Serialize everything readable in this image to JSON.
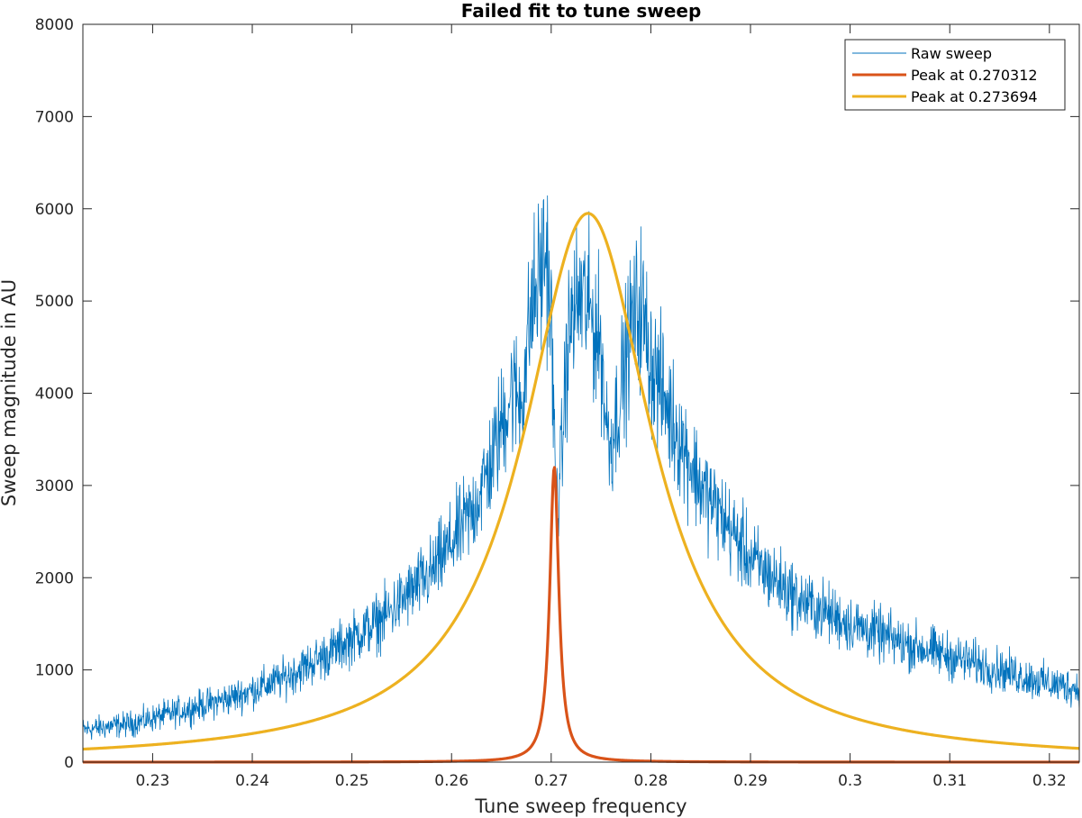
{
  "chart_data": {
    "type": "line",
    "title": "Failed fit to tune sweep",
    "xlabel": "Tune sweep frequency",
    "ylabel": "Sweep magnitude in AU",
    "xlim": [
      0.223,
      0.323
    ],
    "ylim": [
      0,
      8000
    ],
    "xticks": [
      0.23,
      0.24,
      0.25,
      0.26,
      0.27,
      0.28,
      0.29,
      0.3,
      0.31,
      0.32
    ],
    "xtick_labels": [
      "0.23",
      "0.24",
      "0.25",
      "0.26",
      "0.27",
      "0.28",
      "0.29",
      "0.3",
      "0.31",
      "0.32"
    ],
    "yticks": [
      0,
      1000,
      2000,
      3000,
      4000,
      5000,
      6000,
      7000,
      8000
    ],
    "ytick_labels": [
      "0",
      "1000",
      "2000",
      "3000",
      "4000",
      "5000",
      "6000",
      "7000",
      "8000"
    ],
    "grid": false,
    "legend_position": "top-right",
    "series": [
      {
        "name": "Raw sweep",
        "color": "#0072BD",
        "style": "thin-noisy",
        "x": [
          0.223,
          0.228,
          0.233,
          0.238,
          0.243,
          0.248,
          0.253,
          0.258,
          0.262,
          0.264,
          0.266,
          0.267,
          0.268,
          0.2695,
          0.27,
          0.2705,
          0.271,
          0.2715,
          0.272,
          0.273,
          0.2735,
          0.274,
          0.275,
          0.2755,
          0.276,
          0.277,
          0.278,
          0.279,
          0.28,
          0.282,
          0.285,
          0.29,
          0.295,
          0.3,
          0.305,
          0.31,
          0.315,
          0.32,
          0.323
        ],
        "values": [
          350,
          420,
          560,
          700,
          900,
          1200,
          1550,
          2050,
          2700,
          3250,
          4050,
          3900,
          4900,
          5550,
          4800,
          2700,
          3200,
          4300,
          4800,
          5050,
          4950,
          4850,
          4500,
          3700,
          3450,
          4050,
          4700,
          4950,
          4350,
          3750,
          3000,
          2200,
          1750,
          1500,
          1300,
          1150,
          1000,
          850,
          800
        ]
      },
      {
        "name": "Peak at 0.270312",
        "color": "#D95319",
        "style": "thick",
        "fit": {
          "center": 0.270312,
          "amplitude": 3200,
          "halfwidth": 0.00055
        }
      },
      {
        "name": "Peak at 0.273694",
        "color": "#EDB120",
        "style": "thick",
        "fit": {
          "center": 0.273694,
          "amplitude": 5950,
          "halfwidth": 0.0079
        }
      }
    ]
  }
}
